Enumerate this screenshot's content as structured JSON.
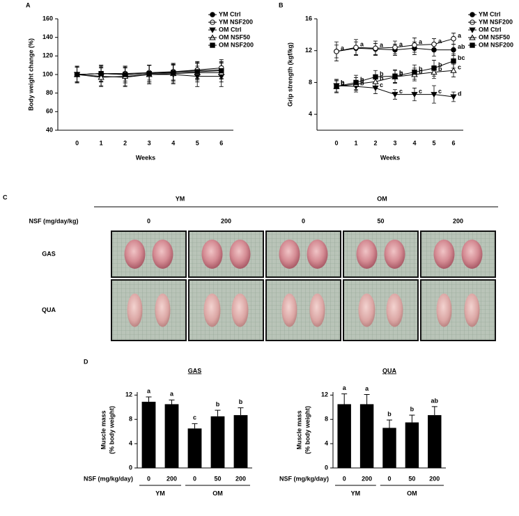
{
  "chart_data": [
    {
      "type": "line",
      "panel": "A",
      "ylabel": "Body weight change (%)",
      "xlabel": "Weeks",
      "x": [
        0,
        1,
        2,
        3,
        4,
        5,
        6
      ],
      "xlim": [
        -0.8,
        6.5
      ],
      "xticks": [
        0,
        1,
        2,
        3,
        4,
        5,
        6
      ],
      "ylim": [
        40,
        160
      ],
      "yticks": [
        40,
        60,
        80,
        100,
        120,
        140,
        160
      ],
      "legend": "upper right",
      "series": [
        {
          "name": "YM Ctrl",
          "color": "#000000",
          "marker": "circle",
          "filled": true,
          "values": [
            100,
            101,
            100,
            101,
            103,
            104,
            105
          ],
          "errors": [
            8,
            9,
            9,
            9,
            9,
            9,
            9
          ]
        },
        {
          "name": "YM NSF200",
          "color": "#000000",
          "marker": "circle",
          "filled": false,
          "values": [
            100,
            101,
            101,
            102,
            103,
            105,
            107
          ],
          "errors": [
            8,
            8,
            8,
            8,
            9,
            9,
            9
          ]
        },
        {
          "name": "OM Ctrl",
          "color": "#000000",
          "marker": "triangle-down",
          "filled": true,
          "values": [
            100,
            98,
            97,
            100,
            100,
            98,
            98
          ],
          "errors": [
            9,
            10,
            10,
            10,
            10,
            11,
            11
          ]
        },
        {
          "name": "OM NSF50",
          "color": "#000000",
          "marker": "triangle-up",
          "filled": false,
          "values": [
            100,
            97,
            98,
            100,
            101,
            102,
            102
          ],
          "errors": [
            9,
            10,
            10,
            10,
            10,
            10,
            10
          ]
        },
        {
          "name": "OM NSF200",
          "color": "#000000",
          "marker": "square",
          "filled": true,
          "values": [
            100,
            101,
            100,
            101,
            102,
            103,
            104
          ],
          "errors": [
            8,
            9,
            9,
            9,
            9,
            9,
            9
          ]
        }
      ]
    },
    {
      "type": "line",
      "panel": "B",
      "ylabel": "Grip strength (kgf/kg)",
      "xlabel": "Weeks",
      "x": [
        0,
        1,
        2,
        3,
        4,
        5,
        6
      ],
      "xlim": [
        -1,
        6.5
      ],
      "xticks": [
        0,
        1,
        2,
        3,
        4,
        5,
        6
      ],
      "ylim": [
        2,
        16
      ],
      "yticks": [
        4,
        8,
        12,
        16
      ],
      "legend": "upper right",
      "series": [
        {
          "name": "YM Ctrl",
          "color": "#000000",
          "marker": "circle",
          "filled": true,
          "values": [
            11.9,
            12.3,
            12.2,
            12.1,
            12.3,
            12.1,
            12.1
          ],
          "errors": [
            0.8,
            0.8,
            0.7,
            0.7,
            0.8,
            0.8,
            0.7
          ],
          "letters": [
            null,
            null,
            null,
            null,
            null,
            null,
            "ab"
          ]
        },
        {
          "name": "YM NSF200",
          "color": "#000000",
          "marker": "circle",
          "filled": false,
          "values": [
            11.9,
            12.4,
            12.3,
            12.4,
            12.7,
            12.8,
            13.5
          ],
          "errors": [
            1.2,
            1.0,
            0.9,
            0.8,
            0.9,
            0.7,
            0.7
          ],
          "letters": [
            "a",
            "a",
            "a",
            "a",
            "a",
            "a",
            "a"
          ]
        },
        {
          "name": "OM Ctrl",
          "color": "#000000",
          "marker": "triangle-down",
          "filled": true,
          "values": [
            7.6,
            7.5,
            7.3,
            6.5,
            6.5,
            6.5,
            6.2
          ],
          "errors": [
            0.8,
            0.7,
            0.7,
            0.6,
            0.8,
            1.1,
            0.6
          ],
          "letters": [
            "b",
            "b",
            "c",
            "c",
            "c",
            "c",
            "d"
          ]
        },
        {
          "name": "OM NSF50",
          "color": "#000000",
          "marker": "triangle-up",
          "filled": false,
          "values": [
            7.5,
            7.8,
            8.1,
            8.7,
            9.0,
            9.3,
            9.5
          ],
          "errors": [
            0.7,
            0.8,
            0.8,
            0.8,
            0.8,
            0.8,
            0.8
          ],
          "letters": [
            "b",
            "b",
            "b",
            "b",
            "b",
            "b",
            "c"
          ]
        },
        {
          "name": "OM NSF200",
          "color": "#000000",
          "marker": "square",
          "filled": true,
          "values": [
            7.5,
            8.0,
            8.7,
            8.8,
            9.3,
            9.8,
            10.7
          ],
          "errors": [
            0.8,
            0.9,
            0.8,
            0.8,
            0.9,
            1.0,
            0.9
          ],
          "letters": [
            "b",
            "b",
            "b",
            "b",
            "b",
            "b",
            "bc"
          ]
        }
      ]
    },
    {
      "type": "bar",
      "panel": "D",
      "title": "GAS",
      "ylabel": [
        "Muscle mass",
        "(% body weight)"
      ],
      "xlabel": "NSF (mg/kg/day)",
      "categories": [
        "0",
        "200",
        "0",
        "50",
        "200"
      ],
      "groups": [
        {
          "label": "YM",
          "span": 2
        },
        {
          "label": "OM",
          "span": 3
        }
      ],
      "values": [
        10.9,
        10.5,
        6.5,
        8.5,
        8.7
      ],
      "errors": [
        0.8,
        0.7,
        0.8,
        1.0,
        1.2
      ],
      "letters": [
        "a",
        "a",
        "c",
        "b",
        "b"
      ],
      "color": "#000000",
      "ylim": [
        0,
        12.5
      ],
      "yticks": [
        0,
        4,
        8,
        12
      ]
    },
    {
      "type": "bar",
      "title": "QUA",
      "ylabel": [
        "Muscle mass",
        "(% body weight)"
      ],
      "xlabel": "NSF (mg/kg/day)",
      "categories": [
        "0",
        "200",
        "0",
        "50",
        "200"
      ],
      "groups": [
        {
          "label": "YM",
          "span": 2
        },
        {
          "label": "OM",
          "span": 3
        }
      ],
      "values": [
        10.5,
        10.5,
        6.6,
        7.5,
        8.7
      ],
      "errors": [
        1.7,
        1.6,
        1.3,
        1.2,
        1.4
      ],
      "letters": [
        "a",
        "a",
        "b",
        "b",
        "ab"
      ],
      "color": "#000000",
      "ylim": [
        0,
        12.5
      ],
      "yticks": [
        0,
        4,
        8,
        12
      ]
    }
  ],
  "photo_panel": {
    "panel": "C",
    "groups": [
      {
        "label": "YM",
        "span": 2
      },
      {
        "label": "OM",
        "span": 3
      }
    ],
    "row_header": "NSF (mg/day/kg)",
    "columns": [
      "0",
      "200",
      "0",
      "50",
      "200"
    ],
    "rows": [
      "GAS",
      "QUA"
    ]
  }
}
